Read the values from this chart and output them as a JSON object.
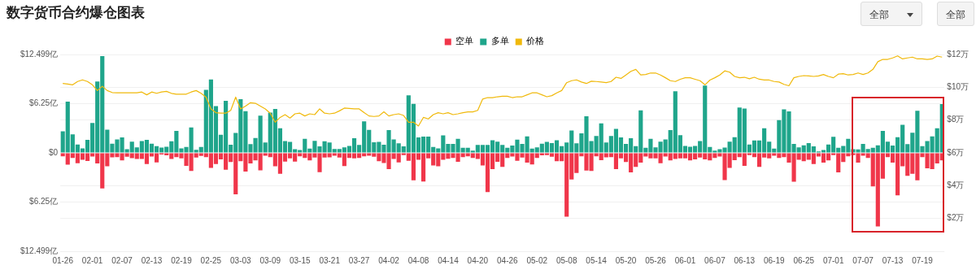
{
  "chart_data": {
    "type": "bar",
    "title": "数字货币合约爆仓图表",
    "annotations": [
      "全部",
      "全部"
    ],
    "categories": [
      "01-26",
      null,
      null,
      null,
      null,
      null,
      "02-01",
      null,
      null,
      null,
      null,
      null,
      "02-07",
      null,
      null,
      null,
      null,
      null,
      "02-13",
      null,
      null,
      null,
      null,
      null,
      "02-19",
      null,
      null,
      null,
      null,
      null,
      "02-25",
      null,
      null,
      null,
      null,
      null,
      "03-03",
      null,
      null,
      null,
      null,
      null,
      "03-09",
      null,
      null,
      null,
      null,
      null,
      "03-15",
      null,
      null,
      null,
      null,
      null,
      "03-21",
      null,
      null,
      null,
      null,
      null,
      "03-27",
      null,
      null,
      null,
      null,
      null,
      "04-02",
      null,
      null,
      null,
      null,
      null,
      "04-08",
      null,
      null,
      null,
      null,
      null,
      "04-14",
      null,
      null,
      null,
      null,
      null,
      "04-20",
      null,
      null,
      null,
      null,
      null,
      "04-26",
      null,
      null,
      null,
      null,
      null,
      "05-02",
      null,
      null,
      null,
      null,
      null,
      "05-08",
      null,
      null,
      null,
      null,
      null,
      "05-14",
      null,
      null,
      null,
      null,
      null,
      "05-20",
      null,
      null,
      null,
      null,
      null,
      "05-26",
      null,
      null,
      null,
      null,
      null,
      "06-01",
      null,
      null,
      null,
      null,
      null,
      "06-07",
      null,
      null,
      null,
      null,
      null,
      "06-13",
      null,
      null,
      null,
      null,
      null,
      "06-19",
      null,
      null,
      null,
      null,
      null,
      "06-25",
      null,
      null,
      null,
      null,
      null,
      "07-01",
      null,
      null,
      null,
      null,
      null,
      "07-07",
      null,
      null,
      null,
      null,
      null,
      "07-13",
      null,
      null,
      null,
      null,
      null,
      "07-19",
      null,
      null,
      null,
      null
    ],
    "series": [
      {
        "name": "空单",
        "color": "#f0364a",
        "values": [
          -0.43,
          -1.5,
          -0.64,
          -1.32,
          -0.89,
          -1.03,
          -0.46,
          -1.35,
          -4.52,
          -1.7,
          -0.57,
          -0.53,
          -0.96,
          -0.5,
          -0.68,
          -0.78,
          -0.78,
          -1.42,
          -0.46,
          -1.21,
          -0.21,
          -0.3,
          -0.78,
          -0.53,
          -0.71,
          -1.64,
          -2.31,
          -0.6,
          -0.39,
          -0.53,
          -1.92,
          -1.42,
          -0.82,
          -2.14,
          -1.17,
          -5.27,
          -1.07,
          -2.38,
          -1.35,
          -0.96,
          -2.21,
          -0.36,
          -0.53,
          -1.71,
          -2.67,
          -1.1,
          -0.71,
          -1.1,
          -0.43,
          -0.64,
          -0.96,
          -0.6,
          -2.46,
          -0.6,
          -0.57,
          -0.36,
          -0.6,
          -1.67,
          -0.64,
          -0.71,
          -0.64,
          -0.43,
          -0.36,
          -0.5,
          -1.07,
          -1.28,
          -2.06,
          -0.78,
          -1.21,
          -0.28,
          -1.0,
          -3.49,
          -0.89,
          -3.63,
          -0.71,
          -1.6,
          -1.71,
          -0.89,
          -0.75,
          -0.64,
          -1.14,
          -0.53,
          -0.43,
          -0.64,
          -0.78,
          -1.6,
          -4.98,
          -2.06,
          -1.14,
          -1.78,
          -0.64,
          -0.46,
          -1.0,
          -0.6,
          -1.25,
          -1.46,
          -0.64,
          -0.3,
          -0.28,
          -0.5,
          -1.07,
          -1.07,
          -8.11,
          -3.38,
          -2.56,
          -0.43,
          -2.24,
          -2.31,
          -0.43,
          -0.93,
          -0.57,
          -0.53,
          -2.06,
          -0.71,
          -1.17,
          -2.49,
          -1.78,
          -1.25,
          -0.46,
          -0.71,
          -0.71,
          -1.32,
          -0.46,
          -0.96,
          -0.78,
          -0.71,
          -0.71,
          -0.96,
          -0.82,
          -0.6,
          -0.82,
          -0.96,
          -0.64,
          -0.46,
          -3.45,
          -1.92,
          -0.93,
          -0.53,
          -1.64,
          -0.28,
          -0.53,
          -1.78,
          -0.6,
          -0.71,
          -0.36,
          -0.64,
          -0.53,
          -1.25,
          -3.67,
          -0.89,
          -1.07,
          -0.89,
          -1.42,
          -0.46,
          -1.25,
          -0.96,
          -0.28,
          -2.49,
          -1.17,
          -0.43,
          -0.28,
          -1.25,
          -0.36,
          -0.64,
          -4.27,
          -9.36,
          -3.27,
          -0.53,
          -1.25,
          -5.41,
          -1.71,
          -2.92,
          -2.67,
          -3.49,
          -0.53,
          -1.96,
          -2.06,
          -1.35,
          -0.96
        ]
      },
      {
        "name": "多单",
        "color": "#1fa58b",
        "values": [
          2.74,
          6.5,
          2.35,
          1.07,
          0.57,
          1.64,
          3.8,
          9.07,
          12.28,
          2.95,
          1.17,
          1.7,
          1.96,
          0.46,
          1.42,
          0.71,
          1.5,
          1.64,
          1.17,
          0.85,
          0.68,
          0.78,
          1.46,
          2.78,
          0.57,
          0.75,
          3.24,
          0.39,
          0.75,
          8.0,
          9.32,
          5.94,
          2.31,
          6.62,
          1.03,
          2.53,
          6.83,
          5.3,
          1.1,
          1.89,
          4.73,
          1.32,
          5.12,
          5.59,
          3.13,
          1.49,
          1.39,
          0.46,
          0.36,
          1.78,
          0.53,
          1.53,
          0.82,
          1.46,
          1.32,
          0.5,
          0.5,
          0.71,
          0.89,
          1.85,
          1.0,
          3.99,
          2.92,
          1.35,
          1.39,
          1.03,
          2.88,
          1.71,
          1.21,
          0.82,
          7.3,
          6.23,
          1.96,
          2.06,
          2.06,
          0.75,
          0.57,
          2.21,
          1.14,
          1.14,
          1.78,
          0.64,
          0.64,
          0.28,
          1.0,
          1.0,
          1.0,
          1.6,
          1.42,
          1.0,
          0.64,
          0.93,
          1.67,
          1.14,
          2.1,
          0.53,
          0.71,
          1.17,
          1.39,
          1.25,
          1.6,
          0.85,
          1.32,
          2.85,
          1.21,
          2.49,
          4.66,
          1.49,
          2.14,
          3.74,
          1.32,
          2.14,
          3.06,
          1.96,
          1.14,
          1.85,
          0.85,
          5.41,
          0.64,
          1.78,
          0.71,
          1.42,
          1.71,
          2.88,
          7.83,
          2.24,
          0.89,
          0.78,
          0.89,
          1.49,
          8.54,
          0.75,
          0.28,
          0.46,
          0.68,
          1.42,
          1.99,
          5.77,
          5.62,
          1.07,
          1.57,
          1.57,
          3.13,
          1.42,
          0.53,
          4.16,
          5.52,
          5.27,
          1.14,
          0.71,
          0.96,
          1.25,
          0.82,
          0.18,
          0.36,
          1.07,
          2.03,
          0.64,
          0.89,
          1.78,
          0.46,
          0.43,
          1.14,
          0.5,
          0.64,
          0.96,
          2.78,
          1.42,
          0.93,
          1.99,
          3.56,
          1.1,
          2.56,
          5.34,
          0.85,
          1.49,
          2.1,
          3.13,
          6.19
        ]
      },
      {
        "name": "价格",
        "color": "#f0b90b",
        "type": "line",
        "axis": "y2",
        "values": [
          10.23,
          10.2,
          10.15,
          10.35,
          10.45,
          10.35,
          10.15,
          9.8,
          10.06,
          9.8,
          9.68,
          9.66,
          9.66,
          9.66,
          9.66,
          9.66,
          9.71,
          9.54,
          9.71,
          9.63,
          9.71,
          9.75,
          9.63,
          9.58,
          9.58,
          9.58,
          9.71,
          9.8,
          9.63,
          9.4,
          8.68,
          8.45,
          8.42,
          8.42,
          8.59,
          9.4,
          8.68,
          8.85,
          9.06,
          9.02,
          8.85,
          8.68,
          8.42,
          7.87,
          8.16,
          8.33,
          8.12,
          8.38,
          8.42,
          8.25,
          8.38,
          8.33,
          8.68,
          8.42,
          8.38,
          8.42,
          8.56,
          8.73,
          8.71,
          8.68,
          8.68,
          8.45,
          8.25,
          8.22,
          8.25,
          8.5,
          8.25,
          8.33,
          8.38,
          8.28,
          7.87,
          7.87,
          7.64,
          8.16,
          8.07,
          8.33,
          8.45,
          8.38,
          8.45,
          8.33,
          8.38,
          8.45,
          8.5,
          8.5,
          8.59,
          9.28,
          9.37,
          9.37,
          9.42,
          9.45,
          9.45,
          9.37,
          9.42,
          9.42,
          9.54,
          9.66,
          9.66,
          9.54,
          9.42,
          9.49,
          9.66,
          9.8,
          10.28,
          10.4,
          10.45,
          10.32,
          10.23,
          10.37,
          10.35,
          10.32,
          10.28,
          10.35,
          10.61,
          10.54,
          10.75,
          10.97,
          11.09,
          10.75,
          10.78,
          10.87,
          10.87,
          10.75,
          10.58,
          10.4,
          10.35,
          10.49,
          10.58,
          10.58,
          10.49,
          10.4,
          10.15,
          10.44,
          10.58,
          10.75,
          11.0,
          10.92,
          10.66,
          10.58,
          10.61,
          10.52,
          10.61,
          10.49,
          10.44,
          10.44,
          10.35,
          10.32,
          10.18,
          10.09,
          10.58,
          10.66,
          10.71,
          10.69,
          10.66,
          10.69,
          10.78,
          10.66,
          10.58,
          10.8,
          10.83,
          10.75,
          10.78,
          10.87,
          10.78,
          10.87,
          11.09,
          11.56,
          11.7,
          11.7,
          11.79,
          11.91,
          11.73,
          11.79,
          11.84,
          11.73,
          11.73,
          11.7,
          11.73,
          11.9,
          11.84
        ]
      }
    ],
    "stacked": true,
    "ylim": [
      -12.499,
      12.499
    ],
    "yticks": [
      {
        "value": -12.499,
        "label": "$12.499亿"
      },
      {
        "value": -6.25,
        "label": "$6.25亿"
      },
      {
        "value": 0,
        "label": "$0"
      },
      {
        "value": 6.25,
        "label": "$6.25亿"
      },
      {
        "value": 12.499,
        "label": "$12.499亿"
      }
    ],
    "y2lim": [
      0,
      12
    ],
    "y2ticks": [
      {
        "value": 2,
        "label": "$2万"
      },
      {
        "value": 4,
        "label": "$4万"
      },
      {
        "value": 6,
        "label": "$6万"
      },
      {
        "value": 8,
        "label": "$8万"
      },
      {
        "value": 10,
        "label": "$10万"
      },
      {
        "value": 12,
        "label": "$12万"
      }
    ],
    "grid": "y",
    "legend": "top"
  }
}
